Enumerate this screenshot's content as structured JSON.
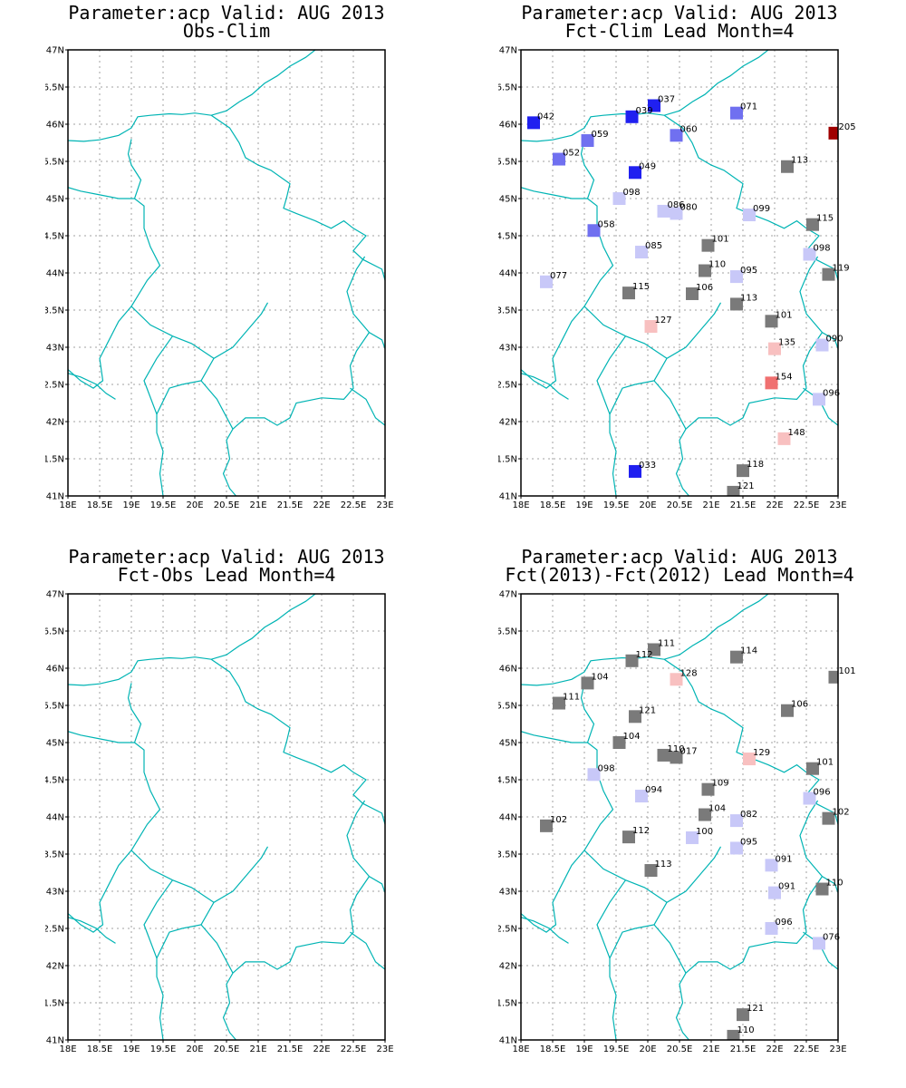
{
  "colors": {
    "border": "#00b4b4",
    "grid": "#a0a0a0",
    "frame": "#000000",
    "bins": {
      "dark_blue": "#2020f0",
      "mid_blue": "#7070f0",
      "light_blue": "#c8c8f8",
      "gray": "#7a7a7a",
      "light_red": "#f8c0c0",
      "mid_red": "#f07070",
      "dark_red": "#a00000"
    }
  },
  "map": {
    "lon_range": [
      18,
      23
    ],
    "lat_range": [
      41,
      47
    ],
    "x_ticks": [
      "18E",
      "18.5E",
      "19E",
      "19.5E",
      "20E",
      "20.5E",
      "21E",
      "21.5E",
      "22E",
      "22.5E",
      "23E"
    ],
    "y_ticks": [
      "41N",
      "41.5N",
      "42N",
      "42.5N",
      "43N",
      "43.5N",
      "44N",
      "44.5N",
      "45N",
      "45.5N",
      "46N",
      "46.5N",
      "47N"
    ],
    "grid": true
  },
  "panels": [
    {
      "title_line1": "Parameter:acp Valid: AUG 2013",
      "title_line2": "Obs-Clim",
      "stations": []
    },
    {
      "title_line1": "Parameter:acp Valid: AUG 2013",
      "title_line2": "Fct-Clim Lead Month=4",
      "stations": [
        {
          "lon": 18.2,
          "lat": 46.02,
          "label": "042",
          "bin": "dark_blue"
        },
        {
          "lon": 19.75,
          "lat": 46.1,
          "label": "039",
          "bin": "dark_blue"
        },
        {
          "lon": 20.1,
          "lat": 46.25,
          "label": "037",
          "bin": "dark_blue"
        },
        {
          "lon": 21.4,
          "lat": 46.15,
          "label": "071",
          "bin": "mid_blue"
        },
        {
          "lon": 22.95,
          "lat": 45.88,
          "label": "205",
          "bin": "dark_red"
        },
        {
          "lon": 19.05,
          "lat": 45.78,
          "label": "059",
          "bin": "mid_blue"
        },
        {
          "lon": 20.45,
          "lat": 45.85,
          "label": "060",
          "bin": "mid_blue"
        },
        {
          "lon": 18.6,
          "lat": 45.53,
          "label": "052",
          "bin": "mid_blue"
        },
        {
          "lon": 19.8,
          "lat": 45.35,
          "label": "049",
          "bin": "dark_blue"
        },
        {
          "lon": 22.2,
          "lat": 45.43,
          "label": "113",
          "bin": "gray"
        },
        {
          "lon": 19.55,
          "lat": 45.0,
          "label": "098",
          "bin": "light_blue"
        },
        {
          "lon": 20.25,
          "lat": 44.83,
          "label": "086",
          "bin": "light_blue"
        },
        {
          "lon": 20.45,
          "lat": 44.8,
          "label": "080",
          "bin": "light_blue"
        },
        {
          "lon": 21.6,
          "lat": 44.78,
          "label": "099",
          "bin": "light_blue"
        },
        {
          "lon": 22.6,
          "lat": 44.65,
          "label": "115",
          "bin": "gray"
        },
        {
          "lon": 19.15,
          "lat": 44.57,
          "label": "058",
          "bin": "mid_blue"
        },
        {
          "lon": 20.95,
          "lat": 44.37,
          "label": "101",
          "bin": "gray"
        },
        {
          "lon": 19.9,
          "lat": 44.28,
          "label": "085",
          "bin": "light_blue"
        },
        {
          "lon": 22.55,
          "lat": 44.25,
          "label": "098",
          "bin": "light_blue"
        },
        {
          "lon": 20.9,
          "lat": 44.03,
          "label": "110",
          "bin": "gray"
        },
        {
          "lon": 21.4,
          "lat": 43.95,
          "label": "095",
          "bin": "light_blue"
        },
        {
          "lon": 22.85,
          "lat": 43.98,
          "label": "119",
          "bin": "gray"
        },
        {
          "lon": 18.4,
          "lat": 43.88,
          "label": "077",
          "bin": "light_blue"
        },
        {
          "lon": 19.7,
          "lat": 43.73,
          "label": "115",
          "bin": "gray"
        },
        {
          "lon": 20.7,
          "lat": 43.72,
          "label": "106",
          "bin": "gray"
        },
        {
          "lon": 21.4,
          "lat": 43.58,
          "label": "113",
          "bin": "gray"
        },
        {
          "lon": 21.95,
          "lat": 43.35,
          "label": "101",
          "bin": "gray"
        },
        {
          "lon": 20.05,
          "lat": 43.28,
          "label": "127",
          "bin": "light_red"
        },
        {
          "lon": 22.0,
          "lat": 42.98,
          "label": "135",
          "bin": "light_red"
        },
        {
          "lon": 22.75,
          "lat": 43.03,
          "label": "090",
          "bin": "light_blue"
        },
        {
          "lon": 21.95,
          "lat": 42.52,
          "label": "154",
          "bin": "mid_red"
        },
        {
          "lon": 22.7,
          "lat": 42.3,
          "label": "096",
          "bin": "light_blue"
        },
        {
          "lon": 22.15,
          "lat": 41.77,
          "label": "148",
          "bin": "light_red"
        },
        {
          "lon": 19.8,
          "lat": 41.33,
          "label": "033",
          "bin": "dark_blue"
        },
        {
          "lon": 21.5,
          "lat": 41.34,
          "label": "118",
          "bin": "gray"
        },
        {
          "lon": 21.35,
          "lat": 41.05,
          "label": "121",
          "bin": "gray"
        }
      ]
    },
    {
      "title_line1": "Parameter:acp Valid: AUG 2013",
      "title_line2": "Fct-Obs Lead Month=4",
      "stations": []
    },
    {
      "title_line1": "Parameter:acp Valid: AUG 2013",
      "title_line2": "Fct(2013)-Fct(2012) Lead Month=4",
      "stations": [
        {
          "lon": 20.1,
          "lat": 46.25,
          "label": "111",
          "bin": "gray"
        },
        {
          "lon": 19.75,
          "lat": 46.1,
          "label": "112",
          "bin": "gray"
        },
        {
          "lon": 21.4,
          "lat": 46.15,
          "label": "114",
          "bin": "gray"
        },
        {
          "lon": 19.05,
          "lat": 45.8,
          "label": "104",
          "bin": "gray"
        },
        {
          "lon": 20.45,
          "lat": 45.85,
          "label": "128",
          "bin": "light_red"
        },
        {
          "lon": 22.95,
          "lat": 45.88,
          "label": "101",
          "bin": "gray"
        },
        {
          "lon": 18.6,
          "lat": 45.53,
          "label": "111",
          "bin": "gray"
        },
        {
          "lon": 19.8,
          "lat": 45.35,
          "label": "121",
          "bin": "gray"
        },
        {
          "lon": 22.2,
          "lat": 45.43,
          "label": "106",
          "bin": "gray"
        },
        {
          "lon": 19.55,
          "lat": 45.0,
          "label": "104",
          "bin": "gray"
        },
        {
          "lon": 20.25,
          "lat": 44.83,
          "label": "110",
          "bin": "gray"
        },
        {
          "lon": 20.45,
          "lat": 44.8,
          "label": "017",
          "bin": "gray"
        },
        {
          "lon": 21.6,
          "lat": 44.78,
          "label": "129",
          "bin": "light_red"
        },
        {
          "lon": 22.6,
          "lat": 44.65,
          "label": "101",
          "bin": "gray"
        },
        {
          "lon": 19.15,
          "lat": 44.57,
          "label": "098",
          "bin": "light_blue"
        },
        {
          "lon": 20.95,
          "lat": 44.37,
          "label": "109",
          "bin": "gray"
        },
        {
          "lon": 19.9,
          "lat": 44.28,
          "label": "094",
          "bin": "light_blue"
        },
        {
          "lon": 22.55,
          "lat": 44.25,
          "label": "096",
          "bin": "light_blue"
        },
        {
          "lon": 20.9,
          "lat": 44.03,
          "label": "104",
          "bin": "gray"
        },
        {
          "lon": 21.4,
          "lat": 43.95,
          "label": "082",
          "bin": "light_blue"
        },
        {
          "lon": 22.85,
          "lat": 43.98,
          "label": "102",
          "bin": "gray"
        },
        {
          "lon": 18.4,
          "lat": 43.88,
          "label": "102",
          "bin": "gray"
        },
        {
          "lon": 19.7,
          "lat": 43.73,
          "label": "112",
          "bin": "gray"
        },
        {
          "lon": 20.7,
          "lat": 43.72,
          "label": "100",
          "bin": "light_blue"
        },
        {
          "lon": 21.4,
          "lat": 43.58,
          "label": "095",
          "bin": "light_blue"
        },
        {
          "lon": 21.95,
          "lat": 43.35,
          "label": "091",
          "bin": "light_blue"
        },
        {
          "lon": 20.05,
          "lat": 43.28,
          "label": "113",
          "bin": "gray"
        },
        {
          "lon": 22.0,
          "lat": 42.98,
          "label": "091",
          "bin": "light_blue"
        },
        {
          "lon": 22.75,
          "lat": 43.03,
          "label": "110",
          "bin": "gray"
        },
        {
          "lon": 21.95,
          "lat": 42.5,
          "label": "096",
          "bin": "light_blue"
        },
        {
          "lon": 22.7,
          "lat": 42.3,
          "label": "076",
          "bin": "light_blue"
        },
        {
          "lon": 21.5,
          "lat": 41.34,
          "label": "121",
          "bin": "gray"
        },
        {
          "lon": 21.35,
          "lat": 41.05,
          "label": "110",
          "bin": "gray"
        }
      ]
    }
  ]
}
